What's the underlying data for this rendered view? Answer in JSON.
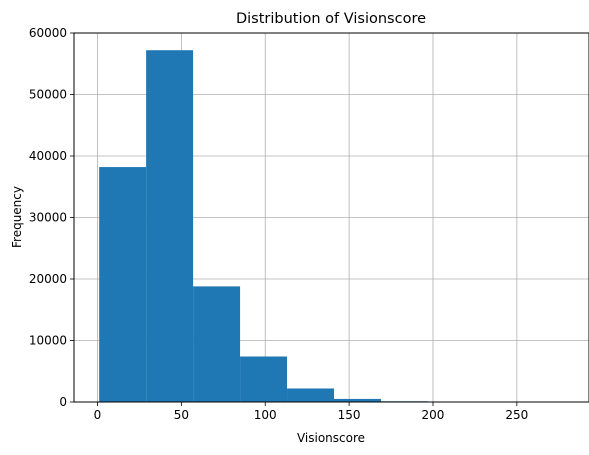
{
  "chart_data": {
    "type": "bar",
    "title": "Distribution of Visionscore",
    "xlabel": "Visionscore",
    "ylabel": "Frequency",
    "xlim": [
      -14,
      293
    ],
    "ylim": [
      0,
      60000
    ],
    "x_ticks": [
      0,
      50,
      100,
      150,
      200,
      250
    ],
    "y_ticks": [
      0,
      10000,
      20000,
      30000,
      40000,
      50000,
      60000
    ],
    "grid": true,
    "bar_color": "#1f77b4",
    "bins": [
      {
        "start": 1,
        "end": 29,
        "count": 38200
      },
      {
        "start": 29,
        "end": 57,
        "count": 57200
      },
      {
        "start": 57,
        "end": 85,
        "count": 18800
      },
      {
        "start": 85,
        "end": 113,
        "count": 7400
      },
      {
        "start": 113,
        "end": 141,
        "count": 2200
      },
      {
        "start": 141,
        "end": 169,
        "count": 500
      },
      {
        "start": 169,
        "end": 197,
        "count": 120
      },
      {
        "start": 197,
        "end": 225,
        "count": 30
      },
      {
        "start": 225,
        "end": 253,
        "count": 10
      },
      {
        "start": 253,
        "end": 281,
        "count": 5
      }
    ]
  }
}
